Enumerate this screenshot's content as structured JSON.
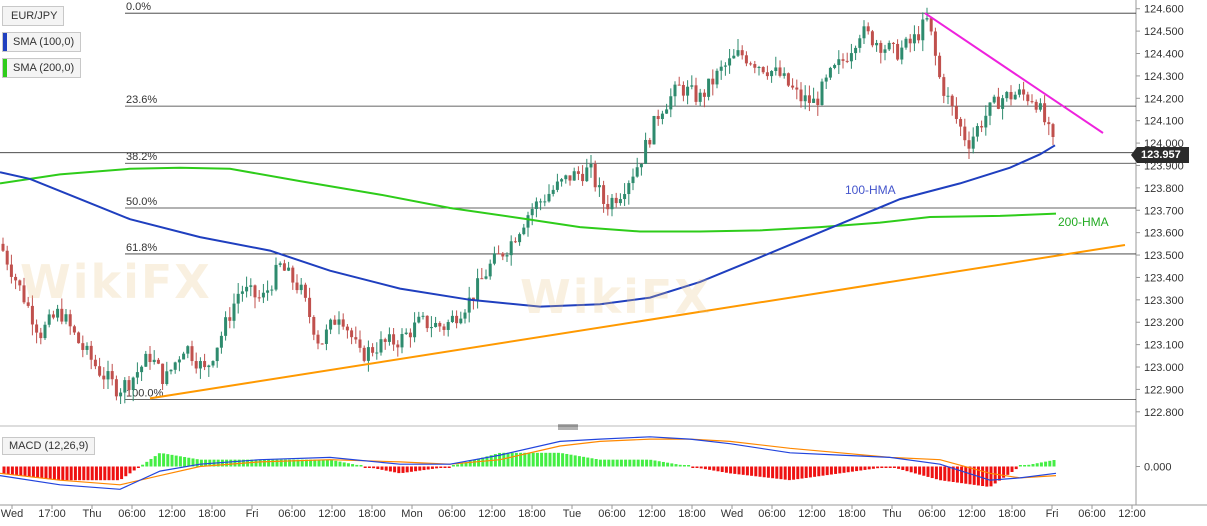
{
  "legend": {
    "symbol": "EUR/JPY",
    "sma100": "SMA (100,0)",
    "sma200": "SMA (200,0)"
  },
  "indicator": {
    "macd_label": "MACD (12,26,9)"
  },
  "current_price": "123.957",
  "watermark": "WikiFX",
  "colors": {
    "bull": "#2e8b6e",
    "bear": "#c0504d",
    "hma100": "#1f3fbf",
    "hma200": "#2ecc1a",
    "trend_up": "#ff9900",
    "trend_down": "#ee22dd",
    "macd_pos": "#44ee44",
    "macd_neg": "#ee1111",
    "macd_line": "#2244dd",
    "signal_line": "#ff8800"
  },
  "chart_data": {
    "type": "candlestick",
    "price_axis": {
      "range": [
        122.75,
        124.63
      ],
      "ticks": [
        "124.600",
        "124.500",
        "124.400",
        "124.300",
        "124.200",
        "124.100",
        "124.000",
        "123.900",
        "123.800",
        "123.700",
        "123.600",
        "123.500",
        "123.400",
        "123.300",
        "123.200",
        "123.100",
        "123.000",
        "122.900",
        "122.800"
      ]
    },
    "time_axis": {
      "labels": [
        "Wed",
        "17:00",
        "Thu",
        "06:00",
        "12:00",
        "18:00",
        "Fri",
        "06:00",
        "12:00",
        "18:00",
        "Mon",
        "06:00",
        "12:00",
        "18:00",
        "Tue",
        "06:00",
        "12:00",
        "18:00",
        "Wed",
        "06:00",
        "12:00",
        "18:00",
        "Thu",
        "06:00",
        "12:00",
        "18:00",
        "Fri",
        "06:00",
        "12:00"
      ]
    },
    "fibonacci": [
      {
        "label": "0.0%",
        "price": 124.58
      },
      {
        "label": "23.6%",
        "price": 124.165
      },
      {
        "label": "38.2%",
        "price": 123.91
      },
      {
        "label": "50.0%",
        "price": 123.71
      },
      {
        "label": "61.8%",
        "price": 123.505
      },
      {
        "label": "100.0%",
        "price": 122.855
      }
    ],
    "extra_level": 123.957,
    "hma100": {
      "label": "100-HMA",
      "points": [
        [
          0,
          123.87
        ],
        [
          30,
          123.84
        ],
        [
          80,
          123.75
        ],
        [
          130,
          123.66
        ],
        [
          200,
          123.58
        ],
        [
          270,
          123.52
        ],
        [
          330,
          123.43
        ],
        [
          400,
          123.35
        ],
        [
          470,
          123.3
        ],
        [
          540,
          123.27
        ],
        [
          600,
          123.28
        ],
        [
          650,
          123.31
        ],
        [
          700,
          123.38
        ],
        [
          760,
          123.49
        ],
        [
          830,
          123.62
        ],
        [
          900,
          123.75
        ],
        [
          960,
          123.82
        ],
        [
          1010,
          123.89
        ],
        [
          1040,
          123.95
        ],
        [
          1055,
          123.99
        ]
      ]
    },
    "hma200": {
      "label": "200-HMA",
      "points": [
        [
          0,
          123.82
        ],
        [
          60,
          123.86
        ],
        [
          130,
          123.885
        ],
        [
          180,
          123.89
        ],
        [
          230,
          123.885
        ],
        [
          300,
          123.83
        ],
        [
          380,
          123.77
        ],
        [
          450,
          123.71
        ],
        [
          520,
          123.665
        ],
        [
          580,
          123.625
        ],
        [
          640,
          123.605
        ],
        [
          700,
          123.605
        ],
        [
          760,
          123.61
        ],
        [
          820,
          123.625
        ],
        [
          880,
          123.645
        ],
        [
          930,
          123.67
        ],
        [
          1000,
          123.675
        ],
        [
          1056,
          123.685
        ]
      ]
    },
    "trendlines": [
      {
        "name": "support",
        "from": [
          150,
          122.86
        ],
        "to": [
          1125,
          123.545
        ]
      },
      {
        "name": "resistance",
        "from": [
          925,
          124.58
        ],
        "to": [
          1103,
          124.045
        ]
      }
    ],
    "candles_anchor": [
      [
        0,
        123.55
      ],
      [
        20,
        123.35
      ],
      [
        40,
        123.15
      ],
      [
        60,
        123.25
      ],
      [
        80,
        123.1
      ],
      [
        100,
        122.98
      ],
      [
        118,
        122.9
      ],
      [
        130,
        122.94
      ],
      [
        150,
        123.05
      ],
      [
        165,
        122.94
      ],
      [
        185,
        123.1
      ],
      [
        205,
        122.98
      ],
      [
        222,
        123.15
      ],
      [
        240,
        123.35
      ],
      [
        262,
        123.3
      ],
      [
        280,
        123.45
      ],
      [
        300,
        123.35
      ],
      [
        320,
        123.1
      ],
      [
        340,
        123.25
      ],
      [
        360,
        123.05
      ],
      [
        380,
        123.1
      ],
      [
        400,
        123.12
      ],
      [
        420,
        123.2
      ],
      [
        445,
        123.18
      ],
      [
        470,
        123.3
      ],
      [
        490,
        123.45
      ],
      [
        510,
        123.55
      ],
      [
        530,
        123.7
      ],
      [
        550,
        123.78
      ],
      [
        570,
        123.85
      ],
      [
        590,
        123.88
      ],
      [
        605,
        123.72
      ],
      [
        620,
        123.78
      ],
      [
        640,
        123.92
      ],
      [
        660,
        124.15
      ],
      [
        680,
        124.25
      ],
      [
        700,
        124.2
      ],
      [
        720,
        124.32
      ],
      [
        740,
        124.4
      ],
      [
        760,
        124.35
      ],
      [
        780,
        124.3
      ],
      [
        800,
        124.2
      ],
      [
        815,
        124.18
      ],
      [
        830,
        124.3
      ],
      [
        845,
        124.38
      ],
      [
        860,
        124.5
      ],
      [
        875,
        124.46
      ],
      [
        895,
        124.4
      ],
      [
        912,
        124.45
      ],
      [
        928,
        124.55
      ],
      [
        940,
        124.28
      ],
      [
        955,
        124.12
      ],
      [
        968,
        124.0
      ],
      [
        985,
        124.12
      ],
      [
        1000,
        124.2
      ],
      [
        1018,
        124.22
      ],
      [
        1035,
        124.2
      ],
      [
        1046,
        124.08
      ],
      [
        1056,
        123.957
      ]
    ],
    "macd": {
      "zero_label": "0.000",
      "line": [
        [
          0,
          -0.004
        ],
        [
          60,
          -0.008
        ],
        [
          120,
          -0.01
        ],
        [
          160,
          -0.002
        ],
        [
          200,
          0.001
        ],
        [
          260,
          0.003
        ],
        [
          330,
          0.004
        ],
        [
          400,
          0.001
        ],
        [
          450,
          0.001
        ],
        [
          500,
          0.005
        ],
        [
          560,
          0.011
        ],
        [
          600,
          0.012
        ],
        [
          650,
          0.013
        ],
        [
          690,
          0.012
        ],
        [
          730,
          0.01
        ],
        [
          790,
          0.006
        ],
        [
          840,
          0.005
        ],
        [
          890,
          0.004
        ],
        [
          940,
          0.001
        ],
        [
          990,
          -0.006
        ],
        [
          1020,
          -0.005
        ],
        [
          1056,
          -0.003
        ]
      ],
      "signal": [
        [
          0,
          -0.003
        ],
        [
          60,
          -0.006
        ],
        [
          120,
          -0.008
        ],
        [
          160,
          -0.004
        ],
        [
          200,
          0.0
        ],
        [
          260,
          0.002
        ],
        [
          330,
          0.003
        ],
        [
          400,
          0.002
        ],
        [
          450,
          0.001
        ],
        [
          500,
          0.003
        ],
        [
          560,
          0.009
        ],
        [
          600,
          0.011
        ],
        [
          650,
          0.012
        ],
        [
          690,
          0.012
        ],
        [
          730,
          0.011
        ],
        [
          790,
          0.008
        ],
        [
          840,
          0.006
        ],
        [
          890,
          0.004
        ],
        [
          940,
          0.003
        ],
        [
          990,
          -0.003
        ],
        [
          1020,
          -0.005
        ],
        [
          1056,
          -0.004
        ]
      ]
    }
  }
}
